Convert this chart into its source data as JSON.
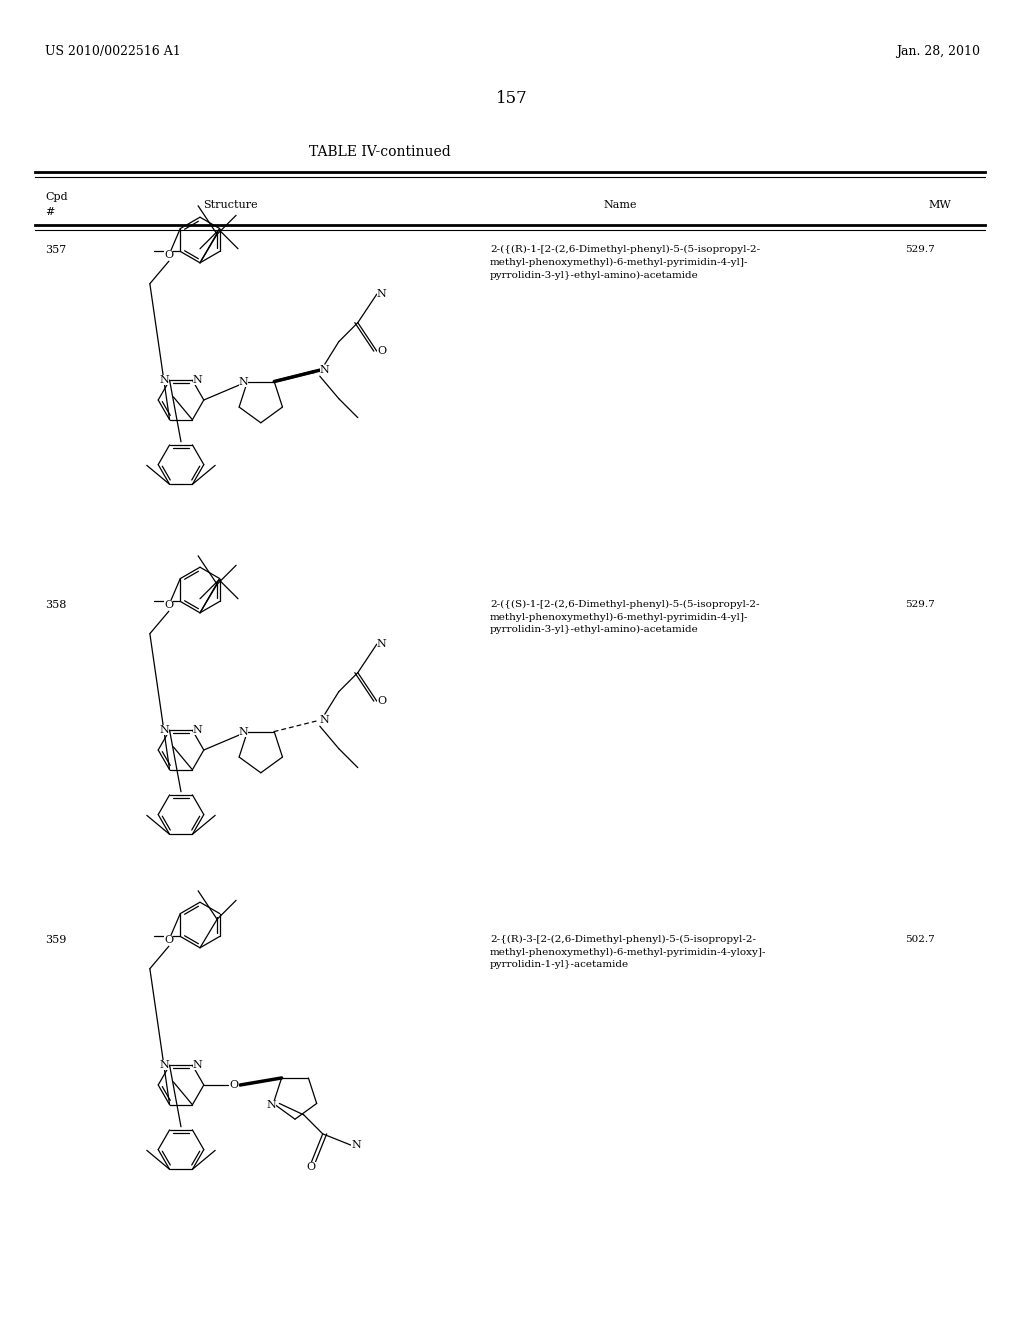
{
  "page_number": "157",
  "patent_number": "US 2010/0022516 A1",
  "patent_date": "Jan. 28, 2010",
  "table_title": "TABLE IV-continued",
  "background_color": "#ffffff",
  "rows": [
    {
      "cpd": "357",
      "name": "2-({(R)-1-[2-(2,6-Dimethyl-phenyl)-5-(5-isopropyl-2-\nmethyl-phenoxymethyl)-6-methyl-pyrimidin-4-yl]-\npyrrolidin-3-yl}-ethyl-amino)-acetamide",
      "mw": "529.7"
    },
    {
      "cpd": "358",
      "name": "2-({(S)-1-[2-(2,6-Dimethyl-phenyl)-5-(5-isopropyl-2-\nmethyl-phenoxymethyl)-6-methyl-pyrimidin-4-yl]-\npyrrolidin-3-yl}-ethyl-amino)-acetamide",
      "mw": "529.7"
    },
    {
      "cpd": "359",
      "name": "2-{(R)-3-[2-(2,6-Dimethyl-phenyl)-5-(5-isopropyl-2-\nmethyl-phenoxymethyl)-6-methyl-pyrimidin-4-yloxy]-\npyrrolidin-1-yl}-acetamide",
      "mw": "502.7"
    }
  ]
}
